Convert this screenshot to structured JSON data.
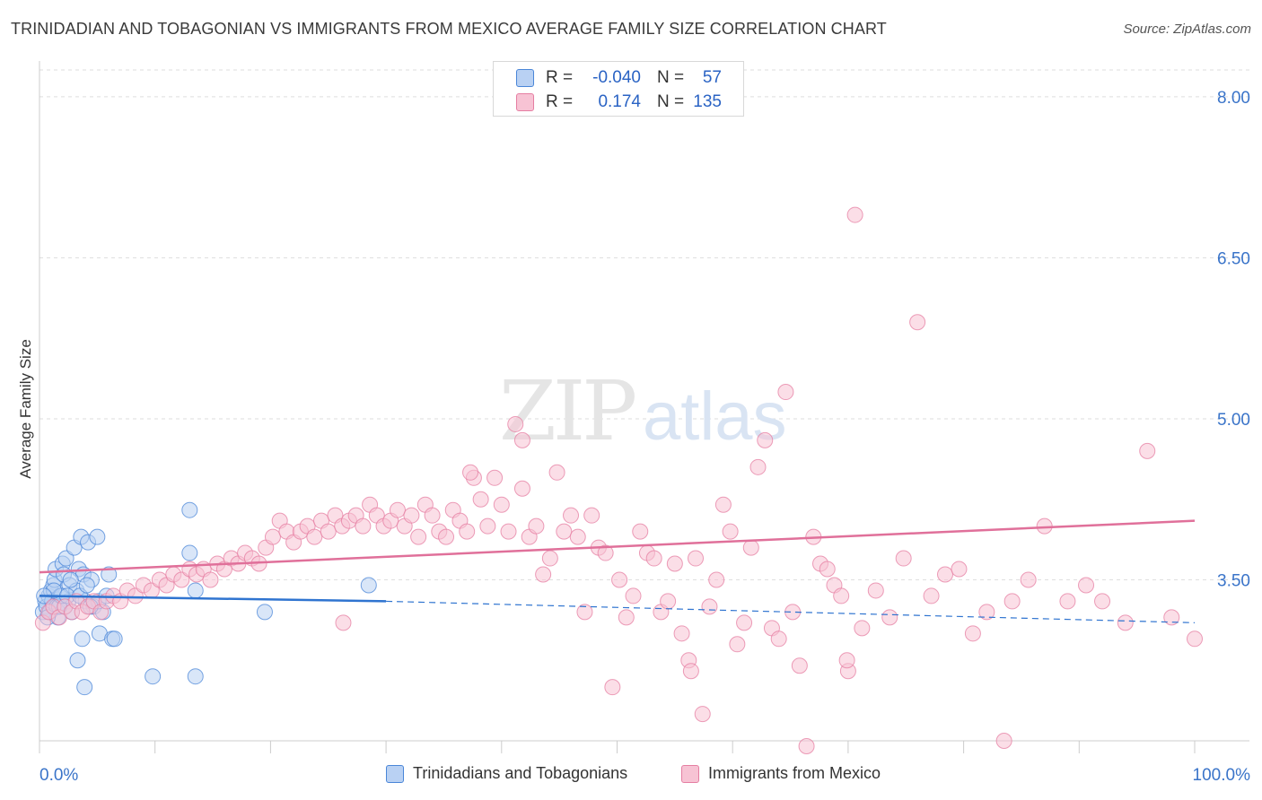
{
  "header": {
    "title": "TRINIDADIAN AND TOBAGONIAN VS IMMIGRANTS FROM MEXICO AVERAGE FAMILY SIZE CORRELATION CHART",
    "source": "Source: ZipAtlas.com"
  },
  "stats": {
    "rows": [
      {
        "r_label": "R =",
        "r_value": "-0.040",
        "n_label": "N =",
        "n_value": "57"
      },
      {
        "r_label": "R =",
        "r_value": "0.174",
        "n_label": "N =",
        "n_value": "135"
      }
    ]
  },
  "colors": {
    "blue": "#4a86d8",
    "blue_fill": "#b9d1f3",
    "blue_line": "#2f74d0",
    "pink": "#e57ea2",
    "pink_fill": "#f7c3d4",
    "pink_line": "#e0709a",
    "tick_label": "#3a74c9",
    "grid": "#dedede"
  },
  "chart_data": {
    "type": "scatter",
    "title": "TRINIDADIAN AND TOBAGONIAN VS IMMIGRANTS FROM MEXICO AVERAGE FAMILY SIZE CORRELATION CHART",
    "xlabel": "",
    "ylabel": "Average Family Size",
    "xlim": [
      0,
      100
    ],
    "ylim": [
      2.0,
      8.25
    ],
    "x_tick_labels": [
      "0.0%",
      "100.0%"
    ],
    "y_ticks": [
      3.5,
      5.0,
      6.5,
      8.0
    ],
    "y_tick_labels": [
      "3.50",
      "5.00",
      "6.50",
      "8.00"
    ],
    "grid": true,
    "legend_position": "bottom",
    "watermark": "ZIPatlas",
    "series": [
      {
        "name": "Trinidadians and Tobagonians",
        "color": "#4a86d8",
        "trend": {
          "x": [
            0,
            30
          ],
          "y": [
            3.35,
            3.3
          ],
          "dashed_to": [
            100,
            3.1
          ]
        },
        "points": [
          [
            0.3,
            3.2
          ],
          [
            0.5,
            3.3
          ],
          [
            0.6,
            3.25
          ],
          [
            0.8,
            3.35
          ],
          [
            0.9,
            3.2
          ],
          [
            1.0,
            3.4
          ],
          [
            1.1,
            3.3
          ],
          [
            1.2,
            3.45
          ],
          [
            1.3,
            3.5
          ],
          [
            1.4,
            3.6
          ],
          [
            1.5,
            3.25
          ],
          [
            1.6,
            3.15
          ],
          [
            1.8,
            3.35
          ],
          [
            2.0,
            3.65
          ],
          [
            2.1,
            3.55
          ],
          [
            2.3,
            3.7
          ],
          [
            2.5,
            3.3
          ],
          [
            2.6,
            3.45
          ],
          [
            2.8,
            3.2
          ],
          [
            3.0,
            3.8
          ],
          [
            3.2,
            3.4
          ],
          [
            3.4,
            3.6
          ],
          [
            3.6,
            3.9
          ],
          [
            3.8,
            3.55
          ],
          [
            4.0,
            3.3
          ],
          [
            4.2,
            3.85
          ],
          [
            4.5,
            3.5
          ],
          [
            4.7,
            3.25
          ],
          [
            5.0,
            3.9
          ],
          [
            5.2,
            3.0
          ],
          [
            5.5,
            3.2
          ],
          [
            6.0,
            3.55
          ],
          [
            6.3,
            2.95
          ],
          [
            3.7,
            2.95
          ],
          [
            3.3,
            2.75
          ],
          [
            3.9,
            2.5
          ],
          [
            9.8,
            2.6
          ],
          [
            13.0,
            4.15
          ],
          [
            13.5,
            3.4
          ],
          [
            13.0,
            3.75
          ],
          [
            19.5,
            3.2
          ],
          [
            28.5,
            3.45
          ],
          [
            13.5,
            2.6
          ],
          [
            5.1,
            3.3
          ],
          [
            2.2,
            3.25
          ],
          [
            1.7,
            3.25
          ],
          [
            0.7,
            3.15
          ],
          [
            1.9,
            3.35
          ],
          [
            2.7,
            3.5
          ],
          [
            4.4,
            3.25
          ],
          [
            5.8,
            3.35
          ],
          [
            6.5,
            2.95
          ],
          [
            1.25,
            3.4
          ],
          [
            0.4,
            3.35
          ],
          [
            2.4,
            3.35
          ],
          [
            3.5,
            3.35
          ],
          [
            4.1,
            3.45
          ]
        ]
      },
      {
        "name": "Immigrants from Mexico",
        "color": "#e57ea2",
        "trend": {
          "x": [
            0,
            100
          ],
          "y": [
            3.57,
            4.05
          ]
        },
        "points": [
          [
            0.3,
            3.1
          ],
          [
            0.8,
            3.2
          ],
          [
            1.2,
            3.25
          ],
          [
            1.7,
            3.15
          ],
          [
            2.2,
            3.25
          ],
          [
            2.8,
            3.2
          ],
          [
            3.2,
            3.3
          ],
          [
            3.7,
            3.2
          ],
          [
            4.2,
            3.25
          ],
          [
            4.7,
            3.3
          ],
          [
            5.3,
            3.2
          ],
          [
            5.8,
            3.3
          ],
          [
            6.4,
            3.35
          ],
          [
            7.0,
            3.3
          ],
          [
            7.6,
            3.4
          ],
          [
            8.3,
            3.35
          ],
          [
            9.0,
            3.45
          ],
          [
            9.7,
            3.4
          ],
          [
            10.4,
            3.5
          ],
          [
            11.0,
            3.45
          ],
          [
            11.6,
            3.55
          ],
          [
            12.3,
            3.5
          ],
          [
            13.0,
            3.6
          ],
          [
            13.6,
            3.55
          ],
          [
            14.2,
            3.6
          ],
          [
            14.8,
            3.5
          ],
          [
            15.4,
            3.65
          ],
          [
            16.0,
            3.6
          ],
          [
            16.6,
            3.7
          ],
          [
            17.2,
            3.65
          ],
          [
            17.8,
            3.75
          ],
          [
            18.4,
            3.7
          ],
          [
            19.0,
            3.65
          ],
          [
            19.6,
            3.8
          ],
          [
            20.2,
            3.9
          ],
          [
            20.8,
            4.05
          ],
          [
            21.4,
            3.95
          ],
          [
            22.0,
            3.85
          ],
          [
            22.6,
            3.95
          ],
          [
            23.2,
            4.0
          ],
          [
            23.8,
            3.9
          ],
          [
            24.4,
            4.05
          ],
          [
            25.0,
            3.95
          ],
          [
            25.6,
            4.1
          ],
          [
            26.2,
            4.0
          ],
          [
            26.8,
            4.05
          ],
          [
            27.4,
            4.1
          ],
          [
            28.0,
            4.0
          ],
          [
            28.6,
            4.2
          ],
          [
            29.2,
            4.1
          ],
          [
            29.8,
            4.0
          ],
          [
            30.4,
            4.05
          ],
          [
            31.0,
            4.15
          ],
          [
            31.6,
            4.0
          ],
          [
            32.2,
            4.1
          ],
          [
            32.8,
            3.9
          ],
          [
            33.4,
            4.2
          ],
          [
            34.0,
            4.1
          ],
          [
            34.6,
            3.95
          ],
          [
            35.2,
            3.9
          ],
          [
            35.8,
            4.15
          ],
          [
            36.4,
            4.05
          ],
          [
            37.0,
            3.95
          ],
          [
            37.6,
            4.45
          ],
          [
            38.2,
            4.25
          ],
          [
            38.8,
            4.0
          ],
          [
            39.4,
            4.45
          ],
          [
            40.0,
            4.2
          ],
          [
            40.6,
            3.95
          ],
          [
            41.2,
            4.95
          ],
          [
            41.8,
            4.35
          ],
          [
            42.4,
            3.9
          ],
          [
            43.0,
            4.0
          ],
          [
            43.6,
            3.55
          ],
          [
            44.2,
            3.7
          ],
          [
            44.8,
            4.5
          ],
          [
            45.4,
            3.95
          ],
          [
            46.0,
            4.1
          ],
          [
            46.6,
            3.9
          ],
          [
            47.2,
            3.2
          ],
          [
            47.8,
            4.1
          ],
          [
            48.4,
            3.8
          ],
          [
            49.0,
            3.75
          ],
          [
            49.6,
            2.5
          ],
          [
            50.2,
            3.5
          ],
          [
            50.8,
            3.15
          ],
          [
            51.4,
            3.35
          ],
          [
            52.0,
            3.95
          ],
          [
            52.6,
            3.75
          ],
          [
            53.2,
            3.7
          ],
          [
            53.8,
            3.2
          ],
          [
            54.4,
            3.3
          ],
          [
            55.0,
            3.65
          ],
          [
            55.6,
            3.0
          ],
          [
            56.2,
            2.75
          ],
          [
            56.8,
            3.7
          ],
          [
            57.4,
            2.25
          ],
          [
            58.0,
            3.25
          ],
          [
            58.6,
            3.5
          ],
          [
            59.2,
            4.2
          ],
          [
            59.8,
            3.95
          ],
          [
            60.4,
            2.9
          ],
          [
            61.0,
            3.1
          ],
          [
            61.6,
            3.8
          ],
          [
            62.2,
            4.55
          ],
          [
            62.8,
            4.8
          ],
          [
            63.4,
            3.05
          ],
          [
            64.0,
            2.95
          ],
          [
            64.6,
            5.25
          ],
          [
            65.2,
            3.2
          ],
          [
            65.8,
            2.7
          ],
          [
            66.4,
            1.95
          ],
          [
            67.0,
            3.9
          ],
          [
            67.6,
            3.65
          ],
          [
            68.2,
            3.6
          ],
          [
            68.8,
            3.45
          ],
          [
            69.4,
            3.35
          ],
          [
            70.0,
            2.65
          ],
          [
            70.6,
            6.9
          ],
          [
            71.2,
            3.05
          ],
          [
            72.4,
            3.4
          ],
          [
            73.6,
            3.15
          ],
          [
            74.8,
            3.7
          ],
          [
            76.0,
            5.9
          ],
          [
            77.2,
            3.35
          ],
          [
            78.4,
            3.55
          ],
          [
            79.6,
            3.6
          ],
          [
            80.8,
            3.0
          ],
          [
            82.0,
            3.2
          ],
          [
            83.5,
            2.0
          ],
          [
            84.2,
            3.3
          ],
          [
            85.6,
            3.5
          ],
          [
            87.0,
            4.0
          ],
          [
            89.0,
            3.3
          ],
          [
            90.6,
            3.45
          ],
          [
            92.0,
            3.3
          ],
          [
            94.0,
            3.1
          ],
          [
            95.9,
            4.7
          ],
          [
            98.0,
            3.15
          ],
          [
            100.0,
            2.95
          ],
          [
            41.8,
            4.8
          ],
          [
            56.4,
            2.65
          ],
          [
            69.9,
            2.75
          ],
          [
            26.3,
            3.1
          ],
          [
            37.3,
            4.5
          ]
        ]
      }
    ]
  },
  "legend": {
    "items": [
      {
        "label": "Trinidadians and Tobagonians"
      },
      {
        "label": "Immigrants from Mexico"
      }
    ]
  }
}
